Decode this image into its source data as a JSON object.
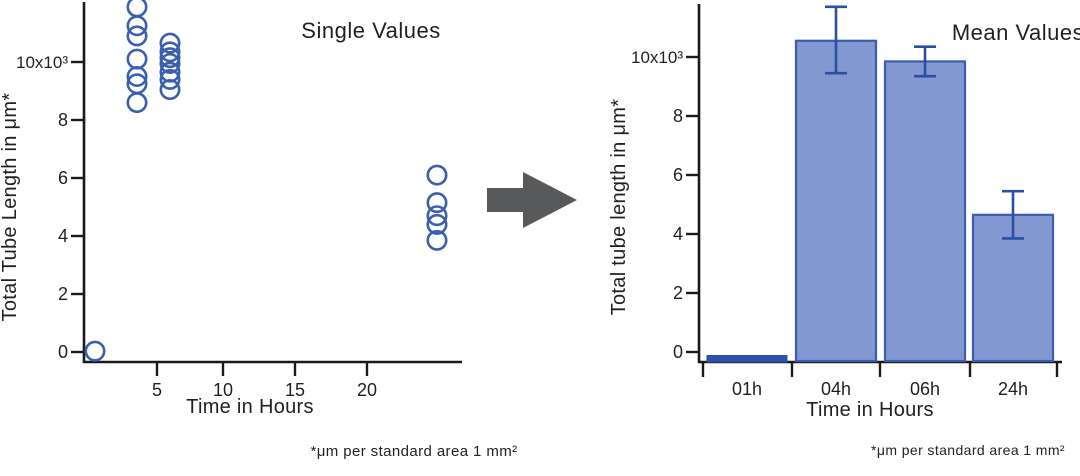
{
  "figure": {
    "background": "#ffffff",
    "text_color": "#231f20",
    "axis_color": "#1a1a1a",
    "arrow": {
      "color": "#58595b",
      "direction": "right"
    }
  },
  "chart_data": [
    {
      "id": "single-values",
      "type": "scatter",
      "title": "Single Values",
      "xlabel": "Time in Hours",
      "ylabel": "Total Tube Length in μm*",
      "footnote": "*μm per standard area 1 mm²",
      "xlim": [
        0,
        26
      ],
      "ylim": [
        0,
        12400
      ],
      "grid": false,
      "x_ticks": [
        5,
        10,
        15,
        20
      ],
      "y_ticks": [
        {
          "value": 10000,
          "label": "10x10³"
        },
        {
          "value": 8000,
          "label": "8"
        },
        {
          "value": 6000,
          "label": "6"
        },
        {
          "value": 4000,
          "label": "4"
        },
        {
          "value": 2000,
          "label": "2"
        },
        {
          "value": 0,
          "label": "0"
        }
      ],
      "marker": {
        "shape": "open-circle",
        "color": "#3a5fad"
      },
      "series": [
        {
          "x": 1,
          "values": [
            30
          ]
        },
        {
          "x": 4,
          "values": [
            11900,
            11250,
            10900,
            10100,
            9500,
            9250,
            8600
          ]
        },
        {
          "x": 6,
          "values": [
            10650,
            10350,
            10150,
            9950,
            9650,
            9400,
            9050
          ]
        },
        {
          "x": 24,
          "values": [
            6100,
            5150,
            4700,
            4400,
            3850
          ]
        }
      ]
    },
    {
      "id": "mean-values",
      "type": "bar",
      "title": "Mean Values",
      "xlabel": "Time in Hours",
      "ylabel": "Total tube length in μm*",
      "footnote": "*μm per standard area 1 mm²",
      "ylim": [
        0,
        11800
      ],
      "grid": false,
      "y_ticks": [
        {
          "value": 10000,
          "label": "10x10³"
        },
        {
          "value": 8000,
          "label": "8"
        },
        {
          "value": 6000,
          "label": "6"
        },
        {
          "value": 4000,
          "label": "4"
        },
        {
          "value": 2000,
          "label": "2"
        },
        {
          "value": 0,
          "label": "0"
        }
      ],
      "categories": [
        "01h",
        "04h",
        "06h",
        "24h"
      ],
      "values": [
        50,
        10550,
        9850,
        4650
      ],
      "errors": [
        null,
        {
          "plus": 1150,
          "minus": 1100
        },
        {
          "plus": 500,
          "minus": 500
        },
        {
          "plus": 800,
          "minus": 800
        }
      ],
      "bar_fill": "#8398d1",
      "bar_stroke": "#3c5dad",
      "error_color": "#2b4fa2",
      "zero_bar_fill": "#2a52a8"
    }
  ]
}
